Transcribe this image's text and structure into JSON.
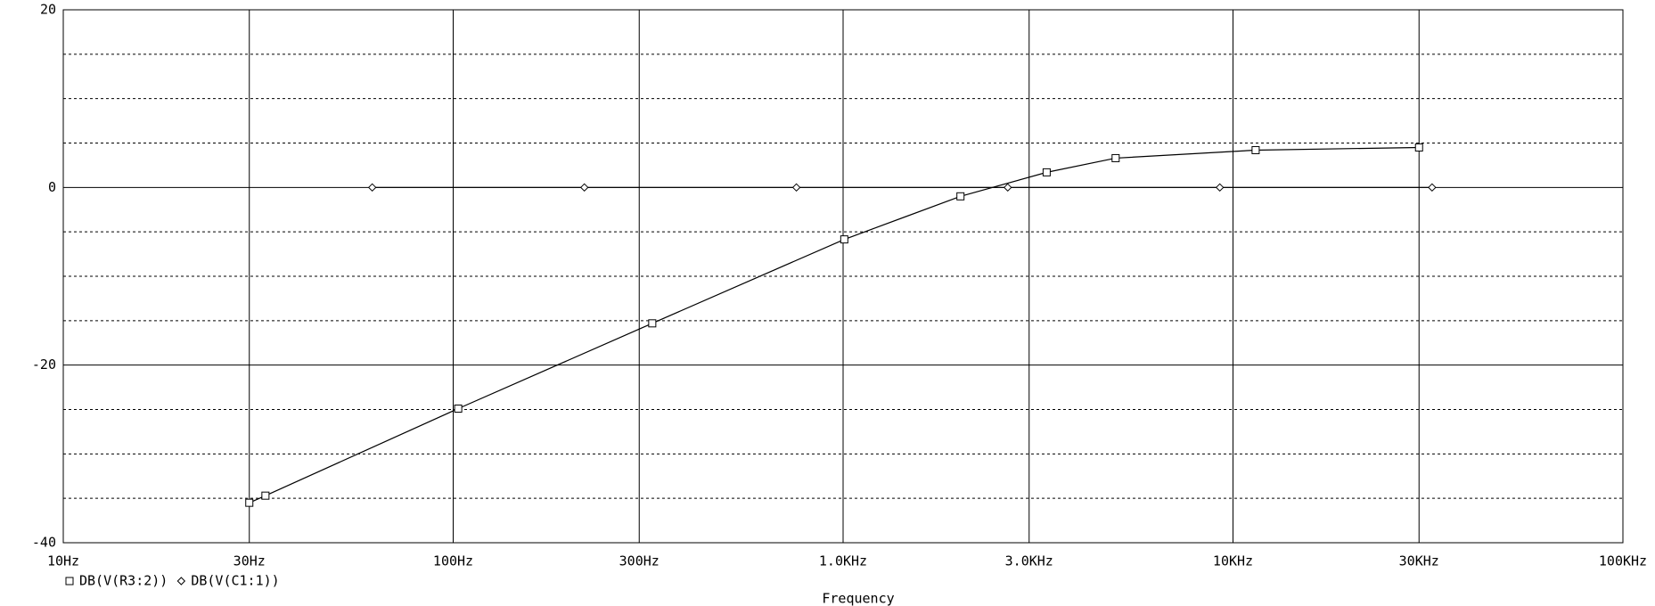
{
  "chart_data": {
    "type": "line",
    "x_label": "Frequency",
    "x_log": true,
    "xlim": [
      10,
      100000
    ],
    "xticks": [
      {
        "value": 10,
        "label": "10Hz"
      },
      {
        "value": 30,
        "label": "30Hz"
      },
      {
        "value": 100,
        "label": "100Hz"
      },
      {
        "value": 300,
        "label": "300Hz"
      },
      {
        "value": 1000,
        "label": "1.0KHz"
      },
      {
        "value": 3000,
        "label": "3.0KHz"
      },
      {
        "value": 10000,
        "label": "10KHz"
      },
      {
        "value": 30000,
        "label": "30KHz"
      },
      {
        "value": 100000,
        "label": "100KHz"
      }
    ],
    "ylim": [
      -40,
      20
    ],
    "yticks": [
      -40,
      -20,
      0,
      20
    ],
    "y_minor_grid": [
      -35,
      -30,
      -25,
      -15,
      -10,
      -5,
      5,
      10,
      15
    ],
    "grid": true,
    "legend": "bottom-left",
    "series": [
      {
        "name": "DB(V(R3:2))",
        "color": "#000000",
        "marker": "square",
        "x": [
          30,
          33,
          103,
          324,
          1007,
          2000,
          3327,
          5000,
          11430,
          30000
        ],
        "values": [
          -35.5,
          -34.7,
          -24.9,
          -15.3,
          -5.85,
          -1.0,
          1.7,
          3.3,
          4.2,
          4.5
        ]
      },
      {
        "name": "DB(V(C1:1))",
        "color": "#000000",
        "marker": "diamond",
        "x": [
          62,
          217,
          759,
          2644,
          9250,
          32400
        ],
        "values": [
          0,
          0,
          0,
          0,
          0,
          0
        ]
      }
    ]
  }
}
